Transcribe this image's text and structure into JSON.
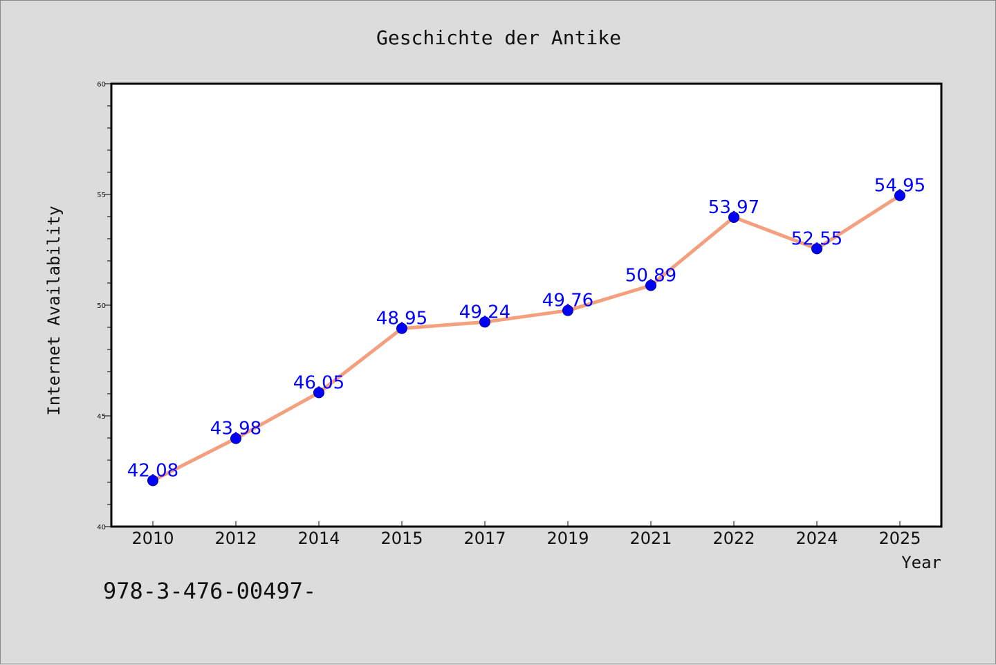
{
  "chart_data": {
    "type": "line",
    "title": "Geschichte der Antike",
    "xlabel": "Year",
    "ylabel": "Internet Availability",
    "categories": [
      "2010",
      "2012",
      "2014",
      "2015",
      "2017",
      "2019",
      "2021",
      "2022",
      "2024",
      "2025"
    ],
    "series": [
      {
        "values": [
          42.08,
          43.98,
          46.05,
          48.95,
          49.24,
          49.76,
          50.89,
          53.97,
          52.55,
          54.95
        ],
        "data_labels": [
          "42.08",
          "43.98",
          "46.05",
          "48.95",
          "49.24",
          "49.76",
          "50.89",
          "53.97",
          "52.55",
          "54.95"
        ]
      }
    ],
    "ylim": [
      40,
      60
    ],
    "yticks": [
      "40",
      "45",
      "50",
      "55",
      "60"
    ],
    "grid": false,
    "line_color": "#f4a07f",
    "marker_color": "#0000ff",
    "label_color": "#0000ff",
    "background_color": "#dcdcdc",
    "plot_background": "#ffffff"
  },
  "footer_text": "978-3-476-00497-"
}
